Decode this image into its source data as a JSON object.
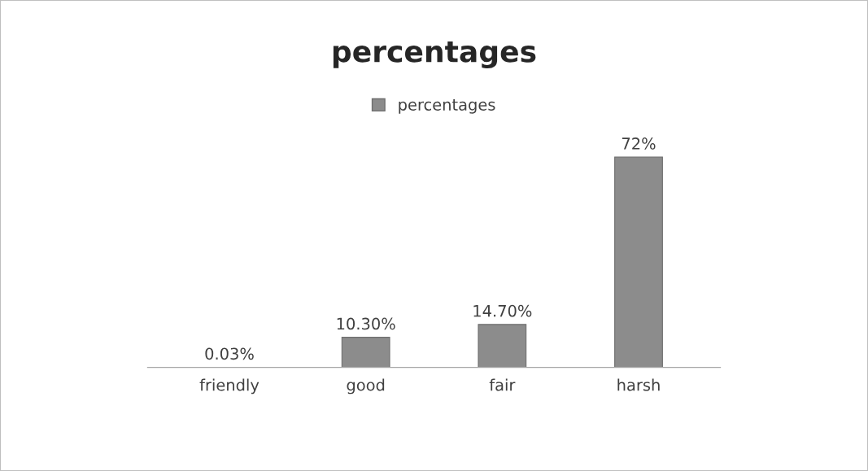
{
  "chart_data": {
    "type": "bar",
    "title": "percentages",
    "categories": [
      "friendly",
      "good",
      "fair",
      "harsh"
    ],
    "series": [
      {
        "name": "percentages",
        "color": "#8c8c8c",
        "values": [
          0.03,
          10.3,
          14.7,
          72
        ],
        "value_labels": [
          "0.03%",
          "10.30%",
          "14.70%",
          "72%"
        ]
      }
    ],
    "legend": "top",
    "grid": false
  }
}
